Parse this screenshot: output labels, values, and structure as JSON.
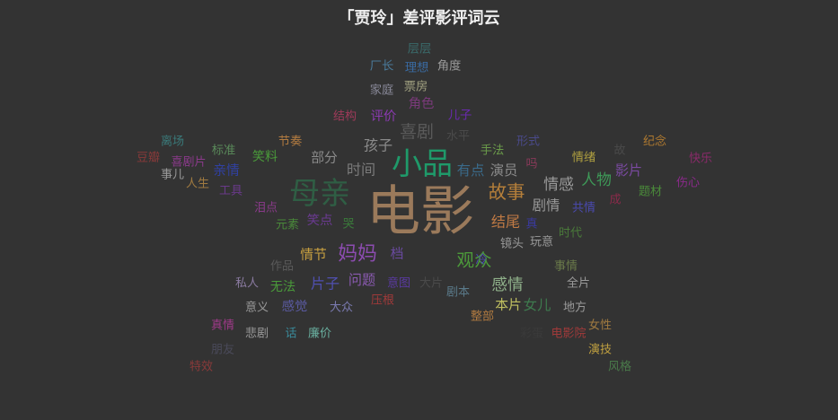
{
  "chart_data": {
    "type": "wordcloud",
    "title": "「贾玲」差评影评词云",
    "background": "#333333",
    "words": [
      {
        "text": "电影",
        "weight": 100,
        "color": "#9b7a5b"
      },
      {
        "text": "母亲",
        "weight": 55,
        "color": "#2f5e44"
      },
      {
        "text": "小品",
        "weight": 52,
        "color": "#1f9a6a"
      },
      {
        "text": "妈妈",
        "weight": 38,
        "color": "#8c4cb0"
      },
      {
        "text": "故事",
        "weight": 34,
        "color": "#b57f3a"
      },
      {
        "text": "观众",
        "weight": 32,
        "color": "#4c9a3a"
      },
      {
        "text": "喜剧",
        "weight": 30,
        "color": "#5a5a5a"
      },
      {
        "text": "感情",
        "weight": 26,
        "color": "#8fb08a"
      },
      {
        "text": "情感",
        "weight": 24,
        "color": "#9a9a9a"
      },
      {
        "text": "人物",
        "weight": 24,
        "color": "#3e9a58"
      },
      {
        "text": "结尾",
        "weight": 22,
        "color": "#c07a44"
      },
      {
        "text": "片子",
        "weight": 22,
        "color": "#5050b0"
      },
      {
        "text": "时间",
        "weight": 22,
        "color": "#7a7a7a"
      },
      {
        "text": "孩子",
        "weight": 22,
        "color": "#8a8a8a"
      },
      {
        "text": "女儿",
        "weight": 20,
        "color": "#3e7a4e"
      },
      {
        "text": "演员",
        "weight": 20,
        "color": "#8a8a8a"
      },
      {
        "text": "有点",
        "weight": 20,
        "color": "#3a6a8a"
      },
      {
        "text": "剧情",
        "weight": 20,
        "color": "#9a9a9a"
      },
      {
        "text": "问题",
        "weight": 19,
        "color": "#8a5ab0"
      },
      {
        "text": "影片",
        "weight": 19,
        "color": "#7a4aa0"
      },
      {
        "text": "情节",
        "weight": 18,
        "color": "#c8a040"
      },
      {
        "text": "本片",
        "weight": 18,
        "color": "#c0c060"
      },
      {
        "text": "亲情",
        "weight": 18,
        "color": "#3040a0"
      },
      {
        "text": "部分",
        "weight": 18,
        "color": "#8a8a8a"
      },
      {
        "text": "档",
        "weight": 18,
        "color": "#6a4aa0"
      },
      {
        "text": "感觉",
        "weight": 17,
        "color": "#5a5aa0"
      },
      {
        "text": "评价",
        "weight": 17,
        "color": "#8a3ab0"
      },
      {
        "text": "笑点",
        "weight": 17,
        "color": "#6a3a90"
      },
      {
        "text": "角色",
        "weight": 17,
        "color": "#7a3a7a"
      },
      {
        "text": "无法",
        "weight": 16,
        "color": "#4a9a3a"
      },
      {
        "text": "笑料",
        "weight": 16,
        "color": "#4a9a3a"
      },
      {
        "text": "节奏",
        "weight": 14,
        "color": "#b07a40"
      },
      {
        "text": "手法",
        "weight": 14,
        "color": "#6a9a4a"
      },
      {
        "text": "情绪",
        "weight": 14,
        "color": "#b0a040"
      },
      {
        "text": "标准",
        "weight": 14,
        "color": "#5a8a5a"
      },
      {
        "text": "票房",
        "weight": 14,
        "color": "#a0a080"
      },
      {
        "text": "家庭",
        "weight": 14,
        "color": "#8a8a9a"
      },
      {
        "text": "角度",
        "weight": 14,
        "color": "#9a9a9a"
      },
      {
        "text": "厂长",
        "weight": 14,
        "color": "#4a7a9a"
      },
      {
        "text": "层层",
        "weight": 14,
        "color": "#3a6a6a"
      },
      {
        "text": "理想",
        "weight": 14,
        "color": "#3a6aa0"
      },
      {
        "text": "儿子",
        "weight": 14,
        "color": "#6a2ab0"
      },
      {
        "text": "结构",
        "weight": 13,
        "color": "#a03a5a"
      },
      {
        "text": "水平",
        "weight": 13,
        "color": "#4a4a4a"
      },
      {
        "text": "形式",
        "weight": 13,
        "color": "#4a4a8a"
      },
      {
        "text": "纪念",
        "weight": 13,
        "color": "#b07a30"
      },
      {
        "text": "时代",
        "weight": 13,
        "color": "#4a7a3a"
      },
      {
        "text": "玩意",
        "weight": 13,
        "color": "#9a9a9a"
      },
      {
        "text": "镜头",
        "weight": 13,
        "color": "#9a9a9a"
      },
      {
        "text": "共情",
        "weight": 13,
        "color": "#4a4ab0"
      },
      {
        "text": "题材",
        "weight": 13,
        "color": "#4a8a3a"
      },
      {
        "text": "伤心",
        "weight": 13,
        "color": "#8a2a8a"
      },
      {
        "text": "快乐",
        "weight": 13,
        "color": "#8a2a6a"
      },
      {
        "text": "离场",
        "weight": 13,
        "color": "#3a7a7a"
      },
      {
        "text": "豆瓣",
        "weight": 13,
        "color": "#8a3a3a"
      },
      {
        "text": "喜剧片",
        "weight": 13,
        "color": "#8a3a8a"
      },
      {
        "text": "事儿",
        "weight": 13,
        "color": "#9a9a9a"
      },
      {
        "text": "人生",
        "weight": 13,
        "color": "#a07a40"
      },
      {
        "text": "工具",
        "weight": 13,
        "color": "#6a3a8a"
      },
      {
        "text": "泪点",
        "weight": 13,
        "color": "#8a3a8a"
      },
      {
        "text": "元素",
        "weight": 13,
        "color": "#4a8a3a"
      },
      {
        "text": "作品",
        "weight": 13,
        "color": "#5a5a5a"
      },
      {
        "text": "私人",
        "weight": 13,
        "color": "#8a7aa0"
      },
      {
        "text": "意义",
        "weight": 13,
        "color": "#9a9a9a"
      },
      {
        "text": "大众",
        "weight": 13,
        "color": "#7a7ab0"
      },
      {
        "text": "压根",
        "weight": 13,
        "color": "#a03a3a"
      },
      {
        "text": "意图",
        "weight": 13,
        "color": "#5a3aa0"
      },
      {
        "text": "剧本",
        "weight": 13,
        "color": "#5a7a8a"
      },
      {
        "text": "整部",
        "weight": 13,
        "color": "#b07a40"
      },
      {
        "text": "地方",
        "weight": 13,
        "color": "#9a9a9a"
      },
      {
        "text": "全片",
        "weight": 13,
        "color": "#9a9a9a"
      },
      {
        "text": "事情",
        "weight": 13,
        "color": "#6a7a4a"
      },
      {
        "text": "电影院",
        "weight": 13,
        "color": "#a03a3a"
      },
      {
        "text": "女性",
        "weight": 13,
        "color": "#a07a40"
      },
      {
        "text": "演技",
        "weight": 13,
        "color": "#c0a040"
      },
      {
        "text": "风格",
        "weight": 13,
        "color": "#4a7a4a"
      },
      {
        "text": "真情",
        "weight": 13,
        "color": "#a03a8a"
      },
      {
        "text": "悲剧",
        "weight": 13,
        "color": "#9a9a9a"
      },
      {
        "text": "话",
        "weight": 13,
        "color": "#3a8a9a"
      },
      {
        "text": "廉价",
        "weight": 13,
        "color": "#6ab0a0"
      },
      {
        "text": "朋友",
        "weight": 13,
        "color": "#4a4a5a"
      },
      {
        "text": "特效",
        "weight": 13,
        "color": "#8a3a3a"
      },
      {
        "text": "彩蛋",
        "weight": 13,
        "color": "#3a3a3a"
      },
      {
        "text": "大片",
        "weight": 13,
        "color": "#4a4a4a"
      },
      {
        "text": "成",
        "weight": 13,
        "color": "#8a2a4a"
      },
      {
        "text": "真",
        "weight": 13,
        "color": "#3a3aa0"
      },
      {
        "text": "哭",
        "weight": 13,
        "color": "#3a7a3a"
      },
      {
        "text": "吗",
        "weight": 13,
        "color": "#8a3a5a"
      },
      {
        "text": "冷",
        "weight": 13,
        "color": "#4a4ab0"
      },
      {
        "text": "故",
        "weight": 13,
        "color": "#4a4a4a"
      }
    ]
  }
}
